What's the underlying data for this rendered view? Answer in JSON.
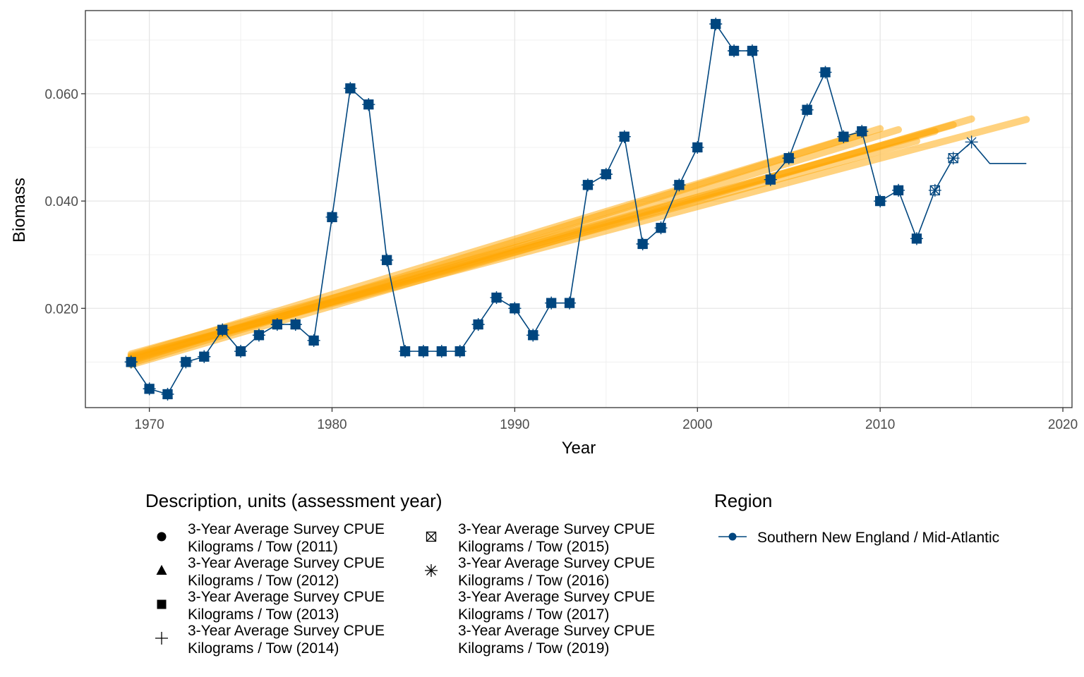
{
  "chart_data": {
    "type": "line",
    "xlabel": "Year",
    "ylabel": "Biomass",
    "xlim": [
      1966.5,
      2020.5
    ],
    "ylim": [
      0.0015,
      0.0755
    ],
    "x_ticks": [
      1970,
      1980,
      1990,
      2000,
      2010,
      2020
    ],
    "x_tick_labels": [
      "1970",
      "1980",
      "1990",
      "2000",
      "2010",
      "2020"
    ],
    "y_ticks": [
      0.02,
      0.04,
      0.06
    ],
    "y_tick_labels": [
      "0.020",
      "0.040",
      "0.060"
    ],
    "grid": true,
    "line_color": "#00467f",
    "trend_color": "#ffa500",
    "series": [
      {
        "name": "Southern New England / Mid-Atlantic",
        "x": [
          1969,
          1970,
          1971,
          1972,
          1973,
          1974,
          1975,
          1976,
          1977,
          1978,
          1979,
          1980,
          1981,
          1982,
          1983,
          1984,
          1985,
          1986,
          1987,
          1988,
          1989,
          1990,
          1991,
          1992,
          1993,
          1994,
          1995,
          1996,
          1997,
          1998,
          1999,
          2000,
          2001,
          2002,
          2003,
          2004,
          2005,
          2006,
          2007,
          2008,
          2009,
          2010,
          2011,
          2012,
          2013,
          2014,
          2015,
          2016,
          2017,
          2018
        ],
        "y": [
          0.01,
          0.005,
          0.004,
          0.01,
          0.011,
          0.016,
          0.012,
          0.015,
          0.017,
          0.017,
          0.014,
          0.037,
          0.061,
          0.058,
          0.029,
          0.012,
          0.012,
          0.012,
          0.012,
          0.017,
          0.022,
          0.02,
          0.015,
          0.021,
          0.021,
          0.043,
          0.045,
          0.052,
          0.032,
          0.035,
          0.043,
          0.05,
          0.073,
          0.068,
          0.068,
          0.044,
          0.048,
          0.057,
          0.064,
          0.052,
          0.053,
          0.04,
          0.042,
          0.033,
          0.042,
          0.048,
          0.051,
          0.047,
          0.047,
          0.047
        ]
      }
    ],
    "trend_lines": [
      {
        "assessment": "2011",
        "x": [
          1969,
          2009
        ],
        "y": [
          0.0112,
          0.0525
        ]
      },
      {
        "assessment": "2012",
        "x": [
          1969,
          2010
        ],
        "y": [
          0.0102,
          0.0535
        ]
      },
      {
        "assessment": "2013",
        "x": [
          1969,
          2011
        ],
        "y": [
          0.0098,
          0.0533
        ]
      },
      {
        "assessment": "2014",
        "x": [
          1969,
          2012
        ],
        "y": [
          0.0108,
          0.0512
        ]
      },
      {
        "assessment": "2015",
        "x": [
          1969,
          2013
        ],
        "y": [
          0.0115,
          0.053
        ]
      },
      {
        "assessment": "2016",
        "x": [
          1969,
          2014
        ],
        "y": [
          0.0105,
          0.0542
        ]
      },
      {
        "assessment": "2017",
        "x": [
          1969,
          2015
        ],
        "y": [
          0.0095,
          0.0553
        ]
      },
      {
        "assessment": "2019",
        "x": [
          1969,
          2018
        ],
        "y": [
          0.011,
          0.0552
        ]
      }
    ],
    "point_groups": [
      {
        "assessment": "2011",
        "shape": "circle",
        "x_range": [
          1969,
          2009
        ]
      },
      {
        "assessment": "2012",
        "shape": "triangle",
        "x_range": [
          1969,
          2010
        ]
      },
      {
        "assessment": "2013",
        "shape": "square",
        "x_range": [
          1969,
          2012
        ]
      },
      {
        "assessment": "2014",
        "shape": "plus",
        "x_range": [
          1969,
          2012
        ]
      },
      {
        "assessment": "2015",
        "shape": "boxcross",
        "x_range": [
          1969,
          2014
        ]
      },
      {
        "assessment": "2016",
        "shape": "asterisk",
        "x_range": [
          1969,
          2015
        ]
      }
    ],
    "legend": {
      "description_title": "Description, units (assessment year)",
      "description_items": [
        {
          "shape": "circle",
          "line1": "3-Year Average Survey CPUE",
          "line2": "Kilograms / Tow (2011)"
        },
        {
          "shape": "triangle",
          "line1": "3-Year Average Survey CPUE",
          "line2": "Kilograms / Tow (2012)"
        },
        {
          "shape": "square",
          "line1": "3-Year Average Survey CPUE",
          "line2": "Kilograms / Tow (2013)"
        },
        {
          "shape": "plus",
          "line1": "3-Year Average Survey CPUE",
          "line2": "Kilograms / Tow (2014)"
        },
        {
          "shape": "boxcross",
          "line1": "3-Year Average Survey CPUE",
          "line2": "Kilograms / Tow (2015)"
        },
        {
          "shape": "asterisk",
          "line1": "3-Year Average Survey CPUE",
          "line2": "Kilograms / Tow (2016)"
        },
        {
          "shape": "none",
          "line1": "3-Year Average Survey CPUE",
          "line2": "Kilograms / Tow (2017)"
        },
        {
          "shape": "none",
          "line1": "3-Year Average Survey CPUE",
          "line2": "Kilograms / Tow (2019)"
        }
      ],
      "region_title": "Region",
      "region_items": [
        {
          "label": "Southern New England / Mid-Atlantic"
        }
      ]
    }
  }
}
